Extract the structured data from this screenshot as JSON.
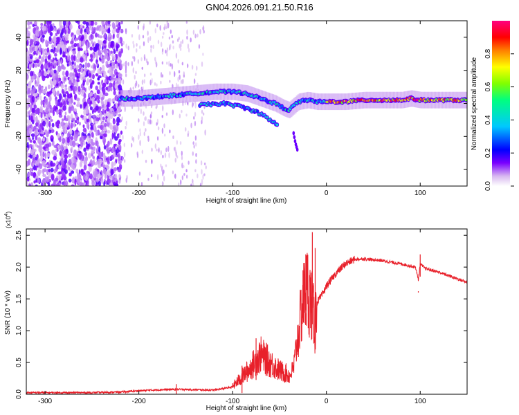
{
  "title": "GN04.2026.091.21.50.R16",
  "chart_data": [
    {
      "type": "heatmap",
      "name": "spectrogram",
      "xlabel": "Height of straight line (km)",
      "ylabel": "Frequency (Hz)",
      "xlim": [
        -320,
        150
      ],
      "ylim": [
        -50,
        50
      ],
      "xticks": [
        -300,
        -200,
        -100,
        0,
        100
      ],
      "yticks": [
        -40,
        -20,
        0,
        20,
        40
      ],
      "xtick_labels": [
        "-300",
        "-200",
        "-100",
        "0",
        "100"
      ],
      "ytick_labels": [
        "-40",
        "-20",
        "0",
        "20",
        "40"
      ],
      "colorbar": {
        "label": "Normalized spectral amplitude",
        "range": [
          0,
          1
        ],
        "ticks": [
          0.0,
          0.2,
          0.4,
          0.6,
          0.8
        ],
        "tick_labels": [
          "0.0",
          "0.2",
          "0.4",
          "0.6",
          "0.8"
        ],
        "colormap": [
          "#ffffff",
          "#d8b8f0",
          "#7a00ff",
          "#0000ff",
          "#00c8ff",
          "#00ff80",
          "#80ff00",
          "#ffff00",
          "#ff8000",
          "#ff0000",
          "#ff0080"
        ]
      },
      "ridge": {
        "description_values_km_hz": true,
        "x": [
          -220,
          -200,
          -180,
          -160,
          -140,
          -120,
          -100,
          -85,
          -75,
          -65,
          -55,
          -45,
          -40,
          -30,
          -20,
          -10,
          0,
          20,
          40,
          60,
          80,
          90,
          100,
          120,
          150
        ],
        "y": [
          3,
          3,
          4,
          5,
          6,
          7,
          7,
          6,
          4,
          2,
          0,
          -3,
          -4,
          1,
          2,
          1,
          1,
          1,
          2,
          2,
          2,
          3,
          2,
          2,
          2
        ]
      },
      "secondary_branch": {
        "x": [
          -135,
          -110,
          -90,
          -75,
          -65,
          -58,
          -52
        ],
        "y": [
          -1,
          0,
          -2,
          -5,
          -8,
          -11,
          -13
        ]
      },
      "tail_branch": {
        "x": [
          -35,
          -33,
          -31
        ],
        "y": [
          -18,
          -24,
          -28
        ]
      }
    },
    {
      "type": "line",
      "name": "snr",
      "xlabel": "Height of straight line (km)",
      "ylabel": "SNR (10 * v/v)",
      "y_multiplier": "(x10",
      "y_multiplier_exp": "4",
      "xlim": [
        -320,
        150
      ],
      "ylim": [
        0,
        2.6
      ],
      "xticks": [
        -300,
        -200,
        -100,
        0,
        100
      ],
      "yticks": [
        0.0,
        0.5,
        1.0,
        1.5,
        2.0,
        2.5
      ],
      "xtick_labels": [
        "-300",
        "-200",
        "-100",
        "0",
        "100"
      ],
      "ytick_labels": [
        "0.0",
        "0.5",
        "1.0",
        "1.5",
        "2.0",
        "2.5"
      ],
      "color": "#e8202a",
      "envelope_x": [
        -320,
        -250,
        -220,
        -200,
        -170,
        -150,
        -120,
        -100,
        -90,
        -80,
        -70,
        -60,
        -50,
        -40,
        -35,
        -30,
        -25,
        -20,
        -15,
        -12,
        -10,
        -5,
        0,
        10,
        20,
        30,
        40,
        60,
        80,
        95,
        98,
        100,
        105,
        120,
        150
      ],
      "envelope_y": [
        0.01,
        0.01,
        0.02,
        0.04,
        0.06,
        0.06,
        0.05,
        0.1,
        0.22,
        0.35,
        0.5,
        0.4,
        0.3,
        0.25,
        0.4,
        0.9,
        1.4,
        1.6,
        1.3,
        1.0,
        1.45,
        1.55,
        1.7,
        1.9,
        2.05,
        2.12,
        2.13,
        2.1,
        2.05,
        2.0,
        1.8,
        2.05,
        1.98,
        1.92,
        1.76
      ],
      "spikes": [
        {
          "x": -160,
          "y": 0.16
        },
        {
          "x": -90,
          "y": 0.45
        },
        {
          "x": -75,
          "y": 0.88
        },
        {
          "x": -25,
          "y": 1.95
        },
        {
          "x": -22,
          "y": 2.2
        },
        {
          "x": -15,
          "y": 2.55
        },
        {
          "x": -12,
          "y": 2.3
        },
        {
          "x": 98,
          "y": 1.62
        },
        {
          "x": 100,
          "y": 2.2
        }
      ]
    }
  ]
}
